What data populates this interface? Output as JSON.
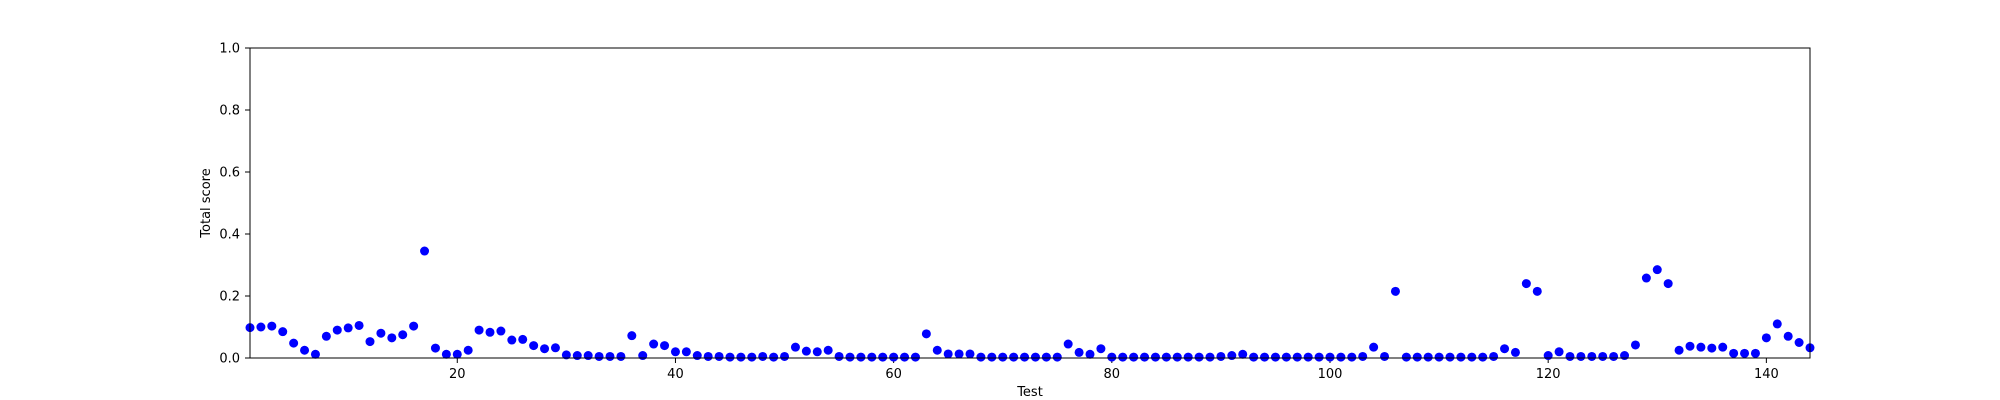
{
  "chart_data": {
    "type": "scatter",
    "xlabel": "Test",
    "ylabel": "Total score",
    "xlim": [
      1,
      144
    ],
    "ylim": [
      0,
      1
    ],
    "x_ticks": [
      20,
      40,
      60,
      80,
      100,
      120,
      140
    ],
    "y_ticks": [
      "0.0",
      "0.2",
      "0.4",
      "0.6",
      "0.8",
      "1.0"
    ],
    "grid": false,
    "marker_color": "#0000ff",
    "series": [
      {
        "x": [
          1,
          2,
          3,
          4,
          5,
          6,
          7,
          8,
          9,
          10,
          11,
          12,
          13,
          14,
          15,
          16,
          17,
          18,
          19,
          20,
          21,
          22,
          23,
          24,
          25,
          26,
          27,
          28,
          29,
          30,
          31,
          32,
          33,
          34,
          35,
          36,
          37,
          38,
          39,
          40,
          41,
          42,
          43,
          44,
          45,
          46,
          47,
          48,
          49,
          50,
          51,
          52,
          53,
          54,
          55,
          56,
          57,
          58,
          59,
          60,
          61,
          62,
          63,
          64,
          65,
          66,
          67,
          68,
          69,
          70,
          71,
          72,
          73,
          74,
          75,
          76,
          77,
          78,
          79,
          80,
          81,
          82,
          83,
          84,
          85,
          86,
          87,
          88,
          89,
          90,
          91,
          92,
          93,
          94,
          95,
          96,
          97,
          98,
          99,
          100,
          101,
          102,
          103,
          104,
          105,
          106,
          107,
          108,
          109,
          110,
          111,
          112,
          113,
          114,
          115,
          116,
          117,
          118,
          119,
          120,
          121,
          122,
          123,
          124,
          125,
          126,
          127,
          128,
          129,
          130,
          131,
          132,
          133,
          134,
          135,
          136,
          137,
          138,
          139,
          140,
          141,
          142,
          143,
          144
        ],
        "y": [
          0.098,
          0.1,
          0.103,
          0.085,
          0.048,
          0.025,
          0.012,
          0.07,
          0.09,
          0.097,
          0.105,
          0.053,
          0.08,
          0.065,
          0.075,
          0.103,
          0.345,
          0.032,
          0.012,
          0.012,
          0.025,
          0.09,
          0.083,
          0.087,
          0.058,
          0.06,
          0.04,
          0.03,
          0.033,
          0.01,
          0.008,
          0.008,
          0.005,
          0.005,
          0.005,
          0.072,
          0.008,
          0.045,
          0.04,
          0.02,
          0.02,
          0.008,
          0.005,
          0.005,
          0.003,
          0.003,
          0.003,
          0.005,
          0.003,
          0.005,
          0.035,
          0.022,
          0.02,
          0.025,
          0.005,
          0.003,
          0.003,
          0.003,
          0.003,
          0.003,
          0.003,
          0.003,
          0.078,
          0.025,
          0.013,
          0.013,
          0.013,
          0.003,
          0.003,
          0.003,
          0.003,
          0.003,
          0.003,
          0.003,
          0.003,
          0.045,
          0.018,
          0.012,
          0.03,
          0.003,
          0.003,
          0.003,
          0.003,
          0.003,
          0.003,
          0.003,
          0.003,
          0.003,
          0.003,
          0.005,
          0.008,
          0.012,
          0.003,
          0.003,
          0.003,
          0.003,
          0.003,
          0.003,
          0.003,
          0.003,
          0.003,
          0.003,
          0.005,
          0.035,
          0.005,
          0.215,
          0.003,
          0.003,
          0.003,
          0.003,
          0.003,
          0.003,
          0.003,
          0.003,
          0.005,
          0.03,
          0.018,
          0.24,
          0.215,
          0.008,
          0.02,
          0.005,
          0.005,
          0.005,
          0.005,
          0.005,
          0.008,
          0.042,
          0.258,
          0.285,
          0.24,
          0.025,
          0.038,
          0.035,
          0.032,
          0.035,
          0.015,
          0.015,
          0.015,
          0.065,
          0.11,
          0.07,
          0.05,
          0.033
        ]
      }
    ]
  }
}
